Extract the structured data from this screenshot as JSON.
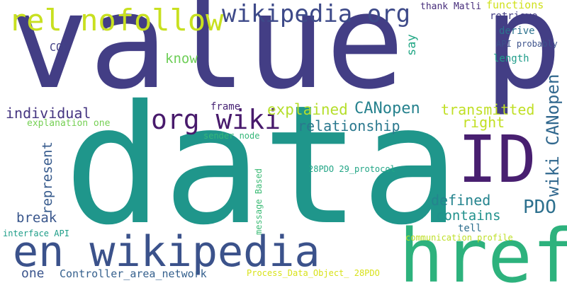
{
  "cloud": {
    "background": "#ffffff",
    "words": [
      {
        "key": "w_valuep",
        "text": "value p",
        "color": "#433e85"
      },
      {
        "key": "w_data",
        "text": "data",
        "color": "#1f968b"
      },
      {
        "key": "w_en_wikipedia",
        "text": "en wikipedia",
        "color": "#3b528b"
      },
      {
        "key": "w_href",
        "text": "href",
        "color": "#2db27d"
      },
      {
        "key": "w_ID",
        "text": "ID",
        "color": "#481f70"
      },
      {
        "key": "w_rel_nofollow",
        "text": "rel nofollow",
        "color": "#c8e020"
      },
      {
        "key": "w_wikipedia_org",
        "text": "wikipedia org",
        "color": "#3e4a89"
      },
      {
        "key": "w_org_wiki",
        "text": "org wiki",
        "color": "#481a6c"
      },
      {
        "key": "w_PDO",
        "text": "PDO",
        "color": "#2d708e"
      },
      {
        "key": "w_wiki_CANopen",
        "text": "wiki CANopen",
        "color": "#31688e"
      },
      {
        "key": "w_CANopen",
        "text": "CANopen",
        "color": "#26828e"
      },
      {
        "key": "w_explained",
        "text": "explained",
        "color": "#b5de2b"
      },
      {
        "key": "w_transmitted",
        "text": "transmitted",
        "color": "#c0df25"
      },
      {
        "key": "w_relationship",
        "text": "relationship",
        "color": "#2a788e"
      },
      {
        "key": "w_individual",
        "text": "individual",
        "color": "#453581"
      },
      {
        "key": "w_right",
        "text": "right",
        "color": "#c2df23"
      },
      {
        "key": "w_defined",
        "text": "defined",
        "color": "#25848e"
      },
      {
        "key": "w_contains",
        "text": "contains",
        "color": "#21918c"
      },
      {
        "key": "w_represent",
        "text": "represent",
        "color": "#375b8d"
      },
      {
        "key": "w_break",
        "text": "break",
        "color": "#39568c"
      },
      {
        "key": "w_one",
        "text": "one",
        "color": "#3a548c"
      },
      {
        "key": "w_controller",
        "text": "Controller_area_network",
        "color": "#35608d"
      },
      {
        "key": "w_know",
        "text": "know",
        "color": "#6ece58"
      },
      {
        "key": "w_COB",
        "text": "COB",
        "color": "#424086"
      },
      {
        "key": "w_functions",
        "text": "functions",
        "color": "#d0e11c"
      },
      {
        "key": "w_retrieve",
        "text": "retrieve",
        "color": "#433d84"
      },
      {
        "key": "w_derive",
        "text": "derive",
        "color": "#2c728e"
      },
      {
        "key": "w_length",
        "text": "length",
        "color": "#1e9c89"
      },
      {
        "key": "w_say",
        "text": "say",
        "color": "#22a785"
      },
      {
        "key": "w_thank_matli",
        "text": "thank Matli",
        "color": "#472d7b"
      },
      {
        "key": "w_api_probably",
        "text": "API probably",
        "color": "#3b518b"
      },
      {
        "key": "w_frame",
        "text": "frame",
        "color": "#482475"
      },
      {
        "key": "w_explanation_one",
        "text": "explanation one",
        "color": "#75d054"
      },
      {
        "key": "w_sender_node",
        "text": "sender node",
        "color": "#35b779"
      },
      {
        "key": "w_message_based",
        "text": "message Based",
        "color": "#3bbb75"
      },
      {
        "key": "w_28pdo",
        "text": "28PDO 29_protocol",
        "color": "#21a585"
      },
      {
        "key": "w_tell",
        "text": "tell",
        "color": "#2e6f8e"
      },
      {
        "key": "w_comm_profile",
        "text": "communication profile",
        "color": "#bddf26"
      },
      {
        "key": "w_interface_api",
        "text": "interface API",
        "color": "#1f9e89"
      },
      {
        "key": "w_process_data",
        "text": "Process_Data_Object_ 28PDO",
        "color": "#d8e219"
      }
    ]
  }
}
